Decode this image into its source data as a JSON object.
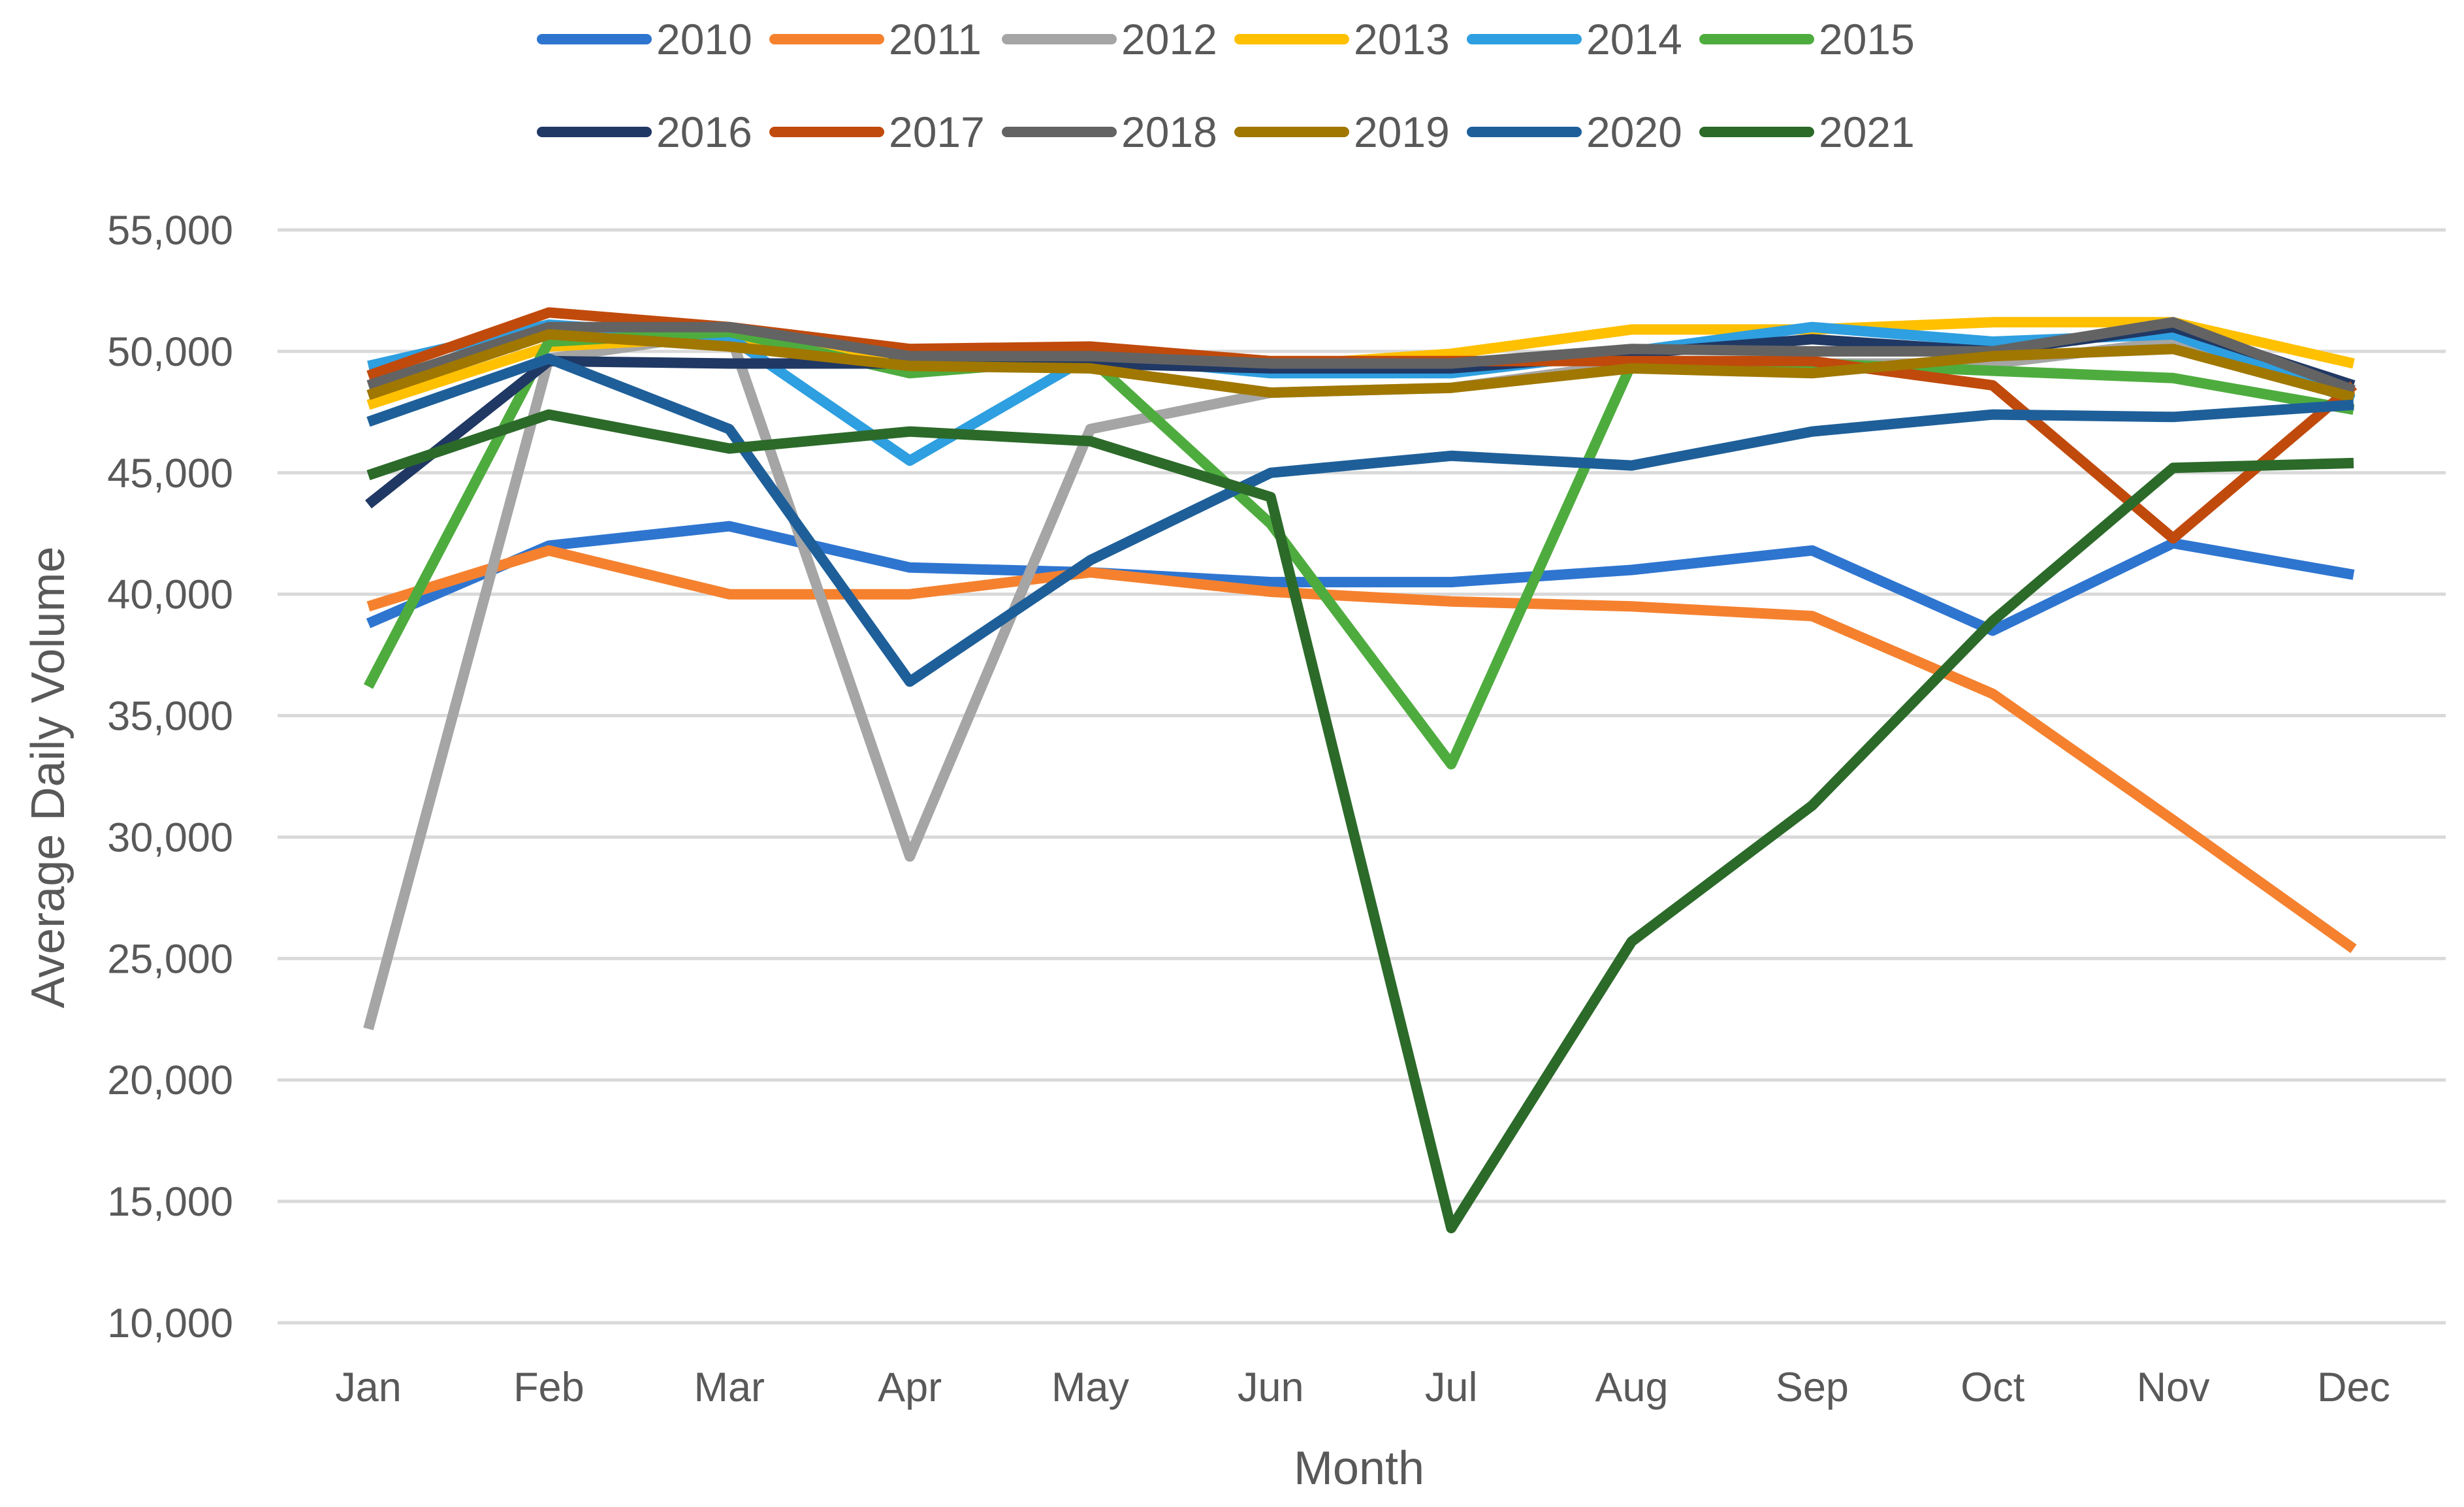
{
  "chart_data": {
    "type": "line",
    "title": "",
    "xlabel": "Month",
    "ylabel": "Average Daily Volume",
    "ylim": [
      10000,
      55000
    ],
    "yticks": [
      10000,
      15000,
      20000,
      25000,
      30000,
      35000,
      40000,
      45000,
      50000,
      55000
    ],
    "ytick_labels": [
      "10,000",
      "15,000",
      "20,000",
      "25,000",
      "30,000",
      "35,000",
      "40,000",
      "45,000",
      "50,000",
      "55,000"
    ],
    "grid": true,
    "legend_position": "top",
    "categories": [
      "Jan",
      "Feb",
      "Mar",
      "Apr",
      "May",
      "Jun",
      "Jul",
      "Aug",
      "Sep",
      "Oct",
      "Nov",
      "Dec"
    ],
    "series": [
      {
        "name": "2010",
        "color": "#2E75D0",
        "values": [
          38800,
          42000,
          42800,
          41100,
          40900,
          40500,
          40500,
          41000,
          41800,
          38500,
          42100,
          40800
        ]
      },
      {
        "name": "2011",
        "color": "#F5812F",
        "values": [
          39500,
          41800,
          40000,
          40000,
          40900,
          40100,
          39700,
          39500,
          39100,
          35900,
          30700,
          25400
        ]
      },
      {
        "name": "2012",
        "color": "#A5A5A5",
        "values": [
          22100,
          49700,
          50800,
          29200,
          46800,
          48300,
          48500,
          49500,
          49500,
          49500,
          50400,
          48100
        ]
      },
      {
        "name": "2013",
        "color": "#FFC000",
        "values": [
          47800,
          50200,
          50600,
          49400,
          49500,
          49400,
          49900,
          50900,
          50900,
          51200,
          51200,
          49500
        ]
      },
      {
        "name": "2014",
        "color": "#2E9FE0",
        "values": [
          49400,
          51100,
          50600,
          45500,
          49800,
          49100,
          49100,
          50000,
          51000,
          50400,
          50700,
          48000
        ]
      },
      {
        "name": "2015",
        "color": "#4EAC3E",
        "values": [
          36200,
          50400,
          50800,
          49100,
          49700,
          42900,
          33000,
          49500,
          49500,
          49200,
          48900,
          47600
        ]
      },
      {
        "name": "2016",
        "color": "#203864",
        "values": [
          43700,
          49600,
          49500,
          49500,
          49500,
          49300,
          49300,
          49900,
          50500,
          50000,
          51000,
          48600
        ]
      },
      {
        "name": "2017",
        "color": "#C04A0C",
        "values": [
          49000,
          51600,
          51000,
          50100,
          50200,
          49600,
          49600,
          49600,
          49600,
          48600,
          42300,
          48600
        ]
      },
      {
        "name": "2018",
        "color": "#636363",
        "values": [
          48600,
          51000,
          51000,
          49800,
          49800,
          49500,
          49500,
          50100,
          50000,
          50000,
          51200,
          48400
        ]
      },
      {
        "name": "2019",
        "color": "#A07700",
        "values": [
          48200,
          50700,
          50200,
          49400,
          49300,
          48300,
          48500,
          49300,
          49100,
          49800,
          50100,
          48100
        ]
      },
      {
        "name": "2020",
        "color": "#1E5F99",
        "values": [
          47100,
          49700,
          46800,
          36400,
          41400,
          45000,
          45700,
          45300,
          46700,
          47400,
          47300,
          47800
        ]
      },
      {
        "name": "2021",
        "color": "#2C6A2A",
        "values": [
          44900,
          47400,
          46000,
          46700,
          46300,
          44000,
          13900,
          25700,
          31300,
          38900,
          45200,
          45400
        ]
      }
    ]
  }
}
